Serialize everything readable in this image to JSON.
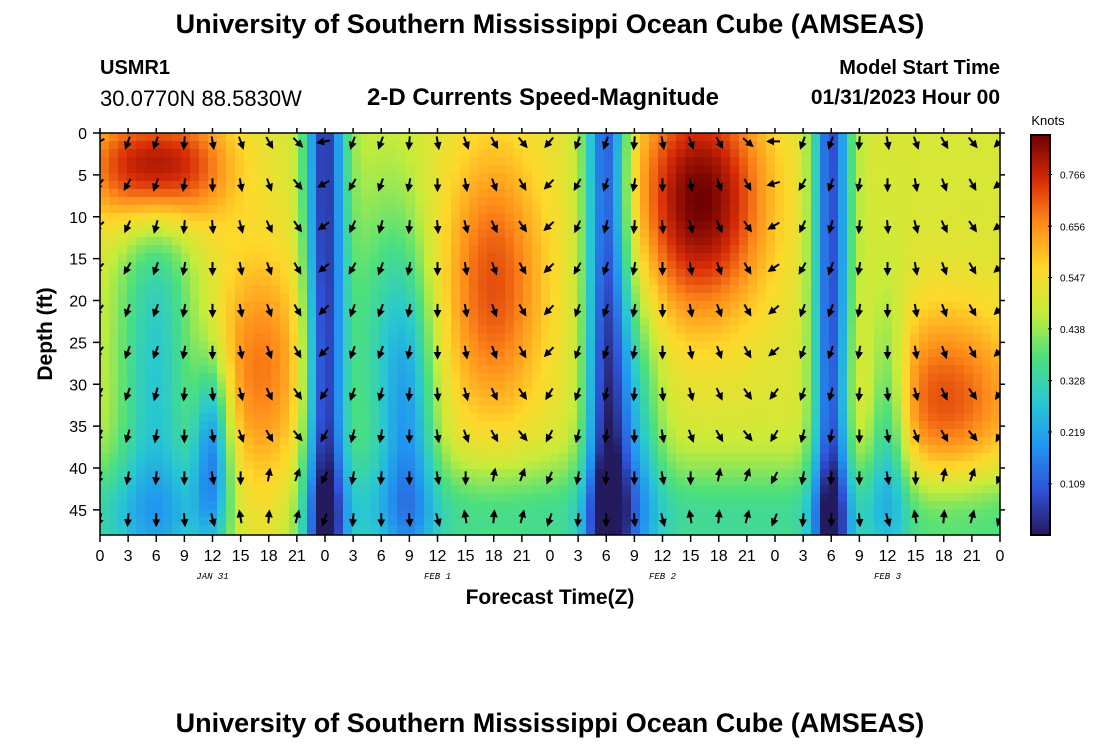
{
  "header": {
    "title": "University of Southern Mississippi Ocean Cube (AMSEAS)",
    "station_id": "USMR1",
    "station_coords": "30.0770N  88.5830W",
    "plot_title": "2-D Currents Speed-Magnitude",
    "start_label": "Model Start Time",
    "start_value": "01/31/2023 Hour 00"
  },
  "footer": {
    "title": "University of Southern Mississippi Ocean Cube (AMSEAS)"
  },
  "chart_data": {
    "type": "heatmap",
    "title": "2-D Currents Speed-Magnitude",
    "xlabel": "Forecast Time(Z)",
    "ylabel": "Depth (ft)",
    "x_ticks": [
      "0",
      "3",
      "6",
      "9",
      "12",
      "15",
      "18",
      "21",
      "0",
      "3",
      "6",
      "9",
      "12",
      "15",
      "18",
      "21",
      "0",
      "3",
      "6",
      "9",
      "12",
      "15",
      "18",
      "21",
      "0",
      "3",
      "6",
      "9",
      "12",
      "15",
      "18",
      "21",
      "0"
    ],
    "date_labels": [
      {
        "label": "JAN 31",
        "hour": 12
      },
      {
        "label": "FEB 1",
        "hour": 36
      },
      {
        "label": "FEB 2",
        "hour": 60
      },
      {
        "label": "FEB 3",
        "hour": 84
      }
    ],
    "xlim_hours": [
      0,
      96
    ],
    "y_ticks": [
      "0",
      "5",
      "10",
      "15",
      "20",
      "25",
      "30",
      "35",
      "40",
      "45"
    ],
    "ylim_ft": [
      0,
      48
    ],
    "colorbar": {
      "label": "Knots",
      "tick_labels": [
        "0.766",
        "0.656",
        "0.547",
        "0.438",
        "0.328",
        "0.219",
        "0.109"
      ],
      "tick_values": [
        0.766,
        0.656,
        0.547,
        0.438,
        0.328,
        0.219,
        0.109
      ],
      "range": [
        0,
        0.85
      ],
      "colors": [
        "#241a5e",
        "#2f52d6",
        "#2196f0",
        "#28c8d2",
        "#4de07c",
        "#c7ec3a",
        "#ffd82a",
        "#ff8c1a",
        "#d62a06",
        "#6e0000"
      ]
    },
    "arrow_rows_ft": [
      1,
      6,
      11,
      16,
      21,
      26,
      31,
      36,
      41,
      46
    ],
    "arrow_cols_hours": [
      0,
      3,
      6,
      9,
      12,
      15,
      18,
      21,
      24,
      27,
      30,
      33,
      36,
      39,
      42,
      45,
      48,
      51,
      54,
      57,
      60,
      63,
      66,
      69,
      72,
      75,
      78,
      81,
      84,
      87,
      90,
      93,
      96
    ],
    "arrow_directions_deg": [
      [
        240,
        200,
        200,
        185,
        170,
        160,
        150,
        135,
        260,
        200,
        200,
        185,
        170,
        160,
        150,
        140,
        220,
        200,
        200,
        185,
        170,
        160,
        150,
        130,
        270,
        200,
        200,
        185,
        170,
        160,
        150,
        140,
        225
      ],
      [
        220,
        210,
        200,
        190,
        180,
        170,
        160,
        140,
        240,
        210,
        200,
        190,
        180,
        170,
        160,
        150,
        225,
        210,
        200,
        190,
        180,
        170,
        160,
        150,
        255,
        210,
        200,
        190,
        180,
        170,
        160,
        150,
        230
      ],
      [
        230,
        205,
        195,
        185,
        175,
        165,
        155,
        145,
        235,
        205,
        195,
        185,
        175,
        165,
        155,
        145,
        228,
        205,
        195,
        185,
        175,
        165,
        155,
        145,
        240,
        205,
        195,
        185,
        175,
        165,
        155,
        145,
        232
      ],
      [
        225,
        210,
        200,
        190,
        180,
        170,
        160,
        150,
        230,
        210,
        200,
        190,
        180,
        170,
        160,
        150,
        226,
        210,
        200,
        190,
        180,
        170,
        160,
        150,
        236,
        210,
        200,
        190,
        180,
        170,
        160,
        150,
        228
      ],
      [
        220,
        200,
        200,
        190,
        180,
        170,
        160,
        150,
        225,
        200,
        200,
        190,
        180,
        170,
        160,
        150,
        224,
        200,
        200,
        190,
        180,
        170,
        160,
        150,
        230,
        200,
        200,
        190,
        180,
        170,
        160,
        150,
        226
      ],
      [
        220,
        200,
        200,
        190,
        180,
        170,
        160,
        150,
        225,
        200,
        200,
        190,
        180,
        170,
        160,
        150,
        224,
        200,
        200,
        190,
        180,
        170,
        160,
        150,
        230,
        200,
        200,
        190,
        180,
        170,
        160,
        150,
        226
      ],
      [
        210,
        200,
        195,
        185,
        175,
        165,
        155,
        145,
        215,
        200,
        195,
        185,
        175,
        165,
        155,
        145,
        212,
        200,
        195,
        185,
        175,
        165,
        155,
        145,
        218,
        200,
        195,
        185,
        175,
        165,
        155,
        145,
        214
      ],
      [
        205,
        195,
        190,
        180,
        170,
        160,
        150,
        140,
        210,
        195,
        190,
        180,
        170,
        160,
        150,
        140,
        208,
        195,
        190,
        180,
        170,
        160,
        150,
        140,
        212,
        195,
        190,
        180,
        170,
        160,
        150,
        140,
        209
      ],
      [
        200,
        190,
        185,
        180,
        170,
        0,
        10,
        20,
        205,
        190,
        185,
        180,
        170,
        0,
        10,
        20,
        203,
        190,
        185,
        180,
        170,
        0,
        10,
        20,
        207,
        190,
        185,
        180,
        170,
        0,
        10,
        20,
        204
      ],
      [
        195,
        185,
        180,
        175,
        165,
        350,
        5,
        15,
        200,
        185,
        180,
        175,
        165,
        350,
        5,
        15,
        198,
        185,
        180,
        175,
        165,
        350,
        5,
        15,
        202,
        185,
        180,
        175,
        165,
        350,
        5,
        15,
        199
      ]
    ]
  }
}
